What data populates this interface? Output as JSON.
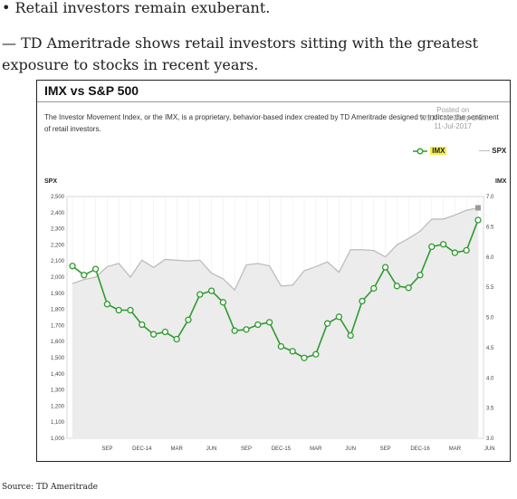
{
  "article": {
    "bullet": "• Retail investors remain exuberant.",
    "paragraph": "— TD Ameritrade shows retail investors sitting with the greatest exposure to stocks in recent years.",
    "source": "Source: TD Ameritrade"
  },
  "colors": {
    "imx": "#2e9a2e",
    "spx": "#bdbdbd",
    "spx_fill": "#ececec",
    "imx_highlight": "#f7ee4c"
  },
  "chart_data": {
    "type": "line",
    "title": "IMX vs S&P 500",
    "subtitle": "The Investor Movement Index, or the IMX, is a proprietary, behavior-based index created by TD Ameritrade designed to indicate the sentiment of retail investors.",
    "watermark": [
      "Posted on",
      "WSJ: The Daily Shot",
      "11-Jul-2017"
    ],
    "left_axis_label": "SPX",
    "right_axis_label": "IMX",
    "left_ylim": [
      1000,
      2500
    ],
    "right_ylim": [
      3.0,
      7.0
    ],
    "left_ticks": [
      "1,000",
      "1,100",
      "1,200",
      "1,300",
      "1,400",
      "1,500",
      "1,600",
      "1,700",
      "1,800",
      "1,900",
      "2,000",
      "2,100",
      "2,200",
      "2,300",
      "2,400",
      "2,500"
    ],
    "right_ticks": [
      "3.0",
      "3.5",
      "4.0",
      "4.5",
      "5.0",
      "5.5",
      "6.0",
      "6.5",
      "7.0"
    ],
    "x_tick_labels": [
      {
        "i": 3,
        "label": "SEP"
      },
      {
        "i": 6,
        "label": "DEC-14"
      },
      {
        "i": 9,
        "label": "MAR"
      },
      {
        "i": 12,
        "label": "JUN"
      },
      {
        "i": 15,
        "label": "SEP"
      },
      {
        "i": 18,
        "label": "DEC-15"
      },
      {
        "i": 21,
        "label": "MAR"
      },
      {
        "i": 24,
        "label": "JUN"
      },
      {
        "i": 27,
        "label": "SEP"
      },
      {
        "i": 30,
        "label": "DEC-16"
      },
      {
        "i": 33,
        "label": "MAR"
      },
      {
        "i": 36,
        "label": "JUN"
      }
    ],
    "grid": "vertical",
    "legend_position": "top-right",
    "series": [
      {
        "name": "IMX",
        "axis": "right",
        "values": [
          5.85,
          5.7,
          5.8,
          5.22,
          5.12,
          5.12,
          4.88,
          4.72,
          4.76,
          4.64,
          4.96,
          5.38,
          5.44,
          5.25,
          4.78,
          4.8,
          4.88,
          4.92,
          4.52,
          4.44,
          4.33,
          4.39,
          4.9,
          5.01,
          4.7,
          5.27,
          5.48,
          5.83,
          5.52,
          5.49,
          5.7,
          6.17,
          6.21,
          6.07,
          6.11,
          6.61
        ]
      },
      {
        "name": "SPX",
        "axis": "left",
        "values": [
          1960,
          1985,
          2000,
          2065,
          2085,
          2000,
          2105,
          2060,
          2110,
          2105,
          2100,
          2105,
          2025,
          1990,
          1920,
          2075,
          2085,
          2070,
          1945,
          1950,
          2040,
          2065,
          2095,
          2030,
          2170,
          2170,
          2165,
          2125,
          2200,
          2240,
          2285,
          2360,
          2360,
          2385,
          2415,
          2430
        ]
      }
    ]
  }
}
